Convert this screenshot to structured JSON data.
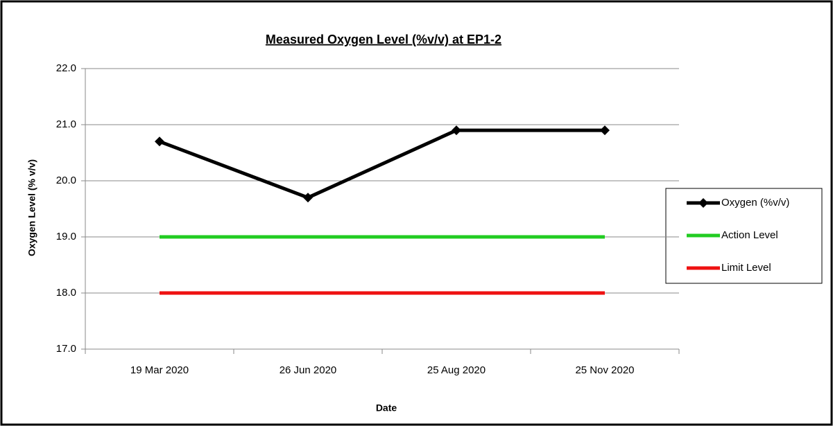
{
  "chart_data": {
    "type": "line",
    "title": "Measured Oxygen Level (%v/v) at EP1-2",
    "x_label": "Date",
    "y_label": "Oxygen Level (% v/v)",
    "categories": [
      "19 Mar 2020",
      "26 Jun 2020",
      "25 Aug 2020",
      "25 Nov 2020"
    ],
    "series": [
      {
        "name": "Oxygen (%v/v)",
        "color": "#000000",
        "marker": "diamond",
        "values": [
          20.7,
          19.7,
          20.9,
          20.9
        ]
      },
      {
        "name": "Action Level",
        "color": "#22cc22",
        "values": [
          19,
          19,
          19,
          19
        ]
      },
      {
        "name": "Limit Level",
        "color": "#ee1111",
        "values": [
          18,
          18,
          18,
          18
        ]
      }
    ],
    "ylim": [
      17,
      22
    ],
    "yticks": [
      {
        "value": 17,
        "label": "17.0"
      },
      {
        "value": 18,
        "label": "18.0"
      },
      {
        "value": 19,
        "label": "19.0"
      },
      {
        "value": 20,
        "label": "20.0"
      },
      {
        "value": 21,
        "label": "21.0"
      },
      {
        "value": 22,
        "label": "22.0"
      }
    ],
    "grid": true,
    "legend": "right"
  }
}
